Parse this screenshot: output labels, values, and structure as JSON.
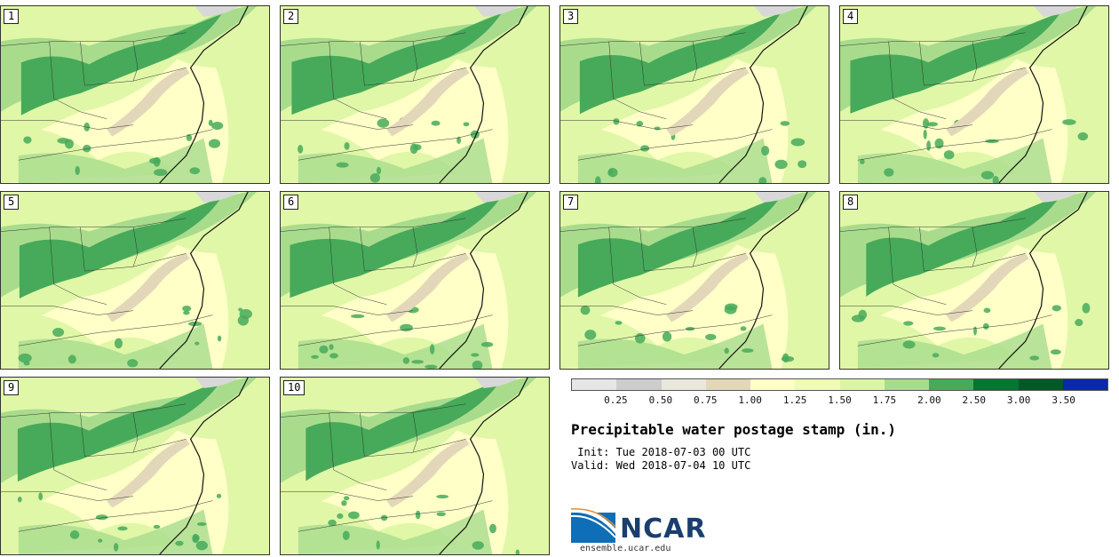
{
  "title": "Precipitable water postage stamp (in.)",
  "init_line": " Init: Tue 2018-07-03 00 UTC",
  "valid_line": "Valid: Wed 2018-07-04 10 UTC",
  "logo_text": "NCAR",
  "url": "ensemble.ucar.edu",
  "panels": [
    "1",
    "2",
    "3",
    "4",
    "5",
    "6",
    "7",
    "8",
    "9",
    "10"
  ],
  "legend": {
    "ticks": [
      "0.25",
      "0.50",
      "0.75",
      "1.00",
      "1.25",
      "1.50",
      "1.75",
      "2.00",
      "2.50",
      "3.00",
      "3.50"
    ],
    "colors": [
      "#e6e6e6",
      "#cdcdcd",
      "#eae8dd",
      "#e3d7b9",
      "#ffffc8",
      "#f0fbb4",
      "#dcf5a5",
      "#a8dc8c",
      "#46aa5a",
      "#007832",
      "#005a28",
      "#0a28aa"
    ]
  },
  "map_colors": {
    "background": "#ffffc8",
    "light_green": "#e0f7a8",
    "mid_green": "#a8dc8c",
    "dark_green": "#46aa5a",
    "tan": "#e3d7b9",
    "gray": "#d8d8d8",
    "boundary": "#333333"
  }
}
